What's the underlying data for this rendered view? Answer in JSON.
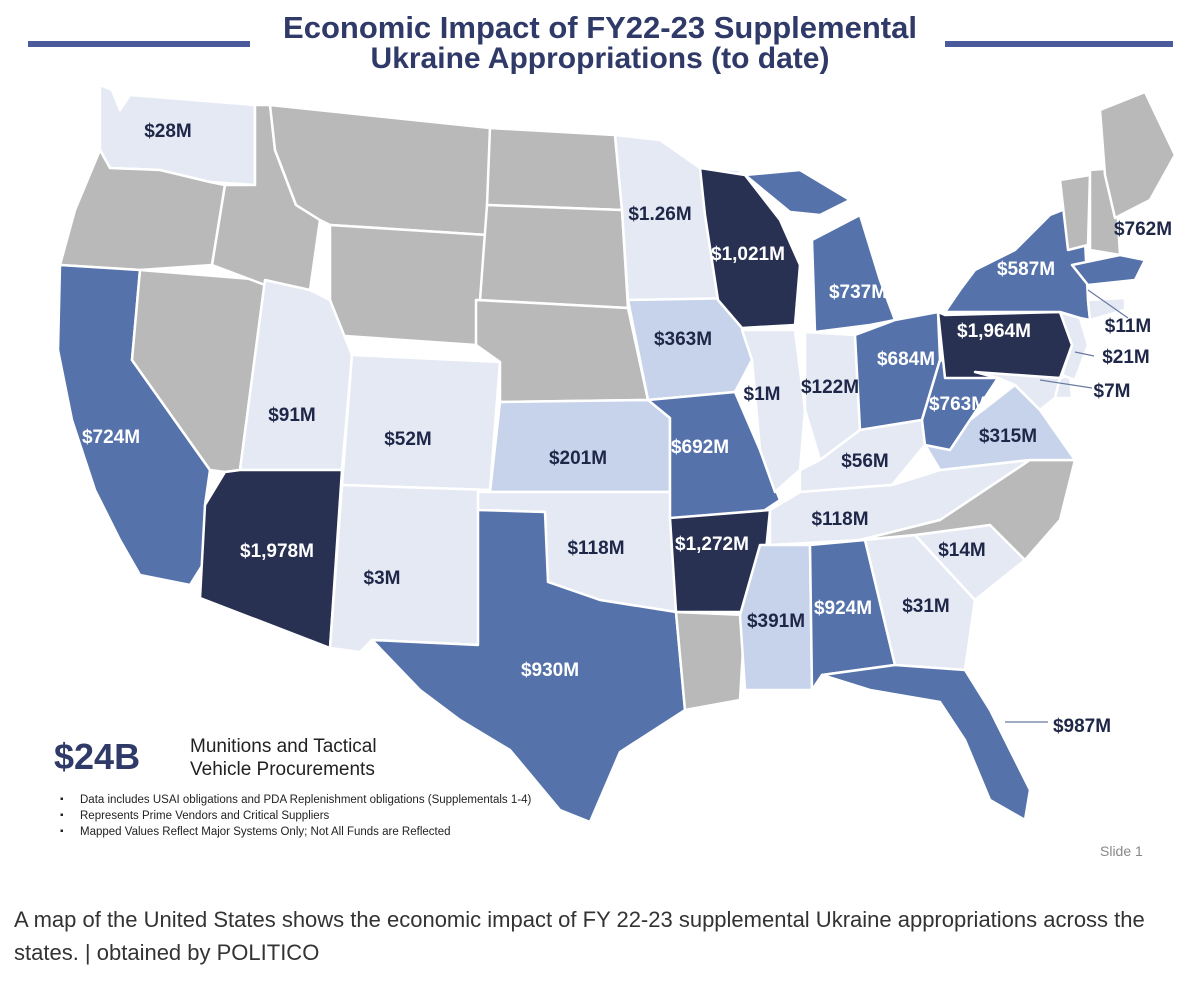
{
  "title": {
    "line1": "Economic Impact of FY22-23 Supplemental",
    "line2": "Ukraine Appropriations (to date)"
  },
  "map": {
    "states": [
      {
        "state": "WA",
        "value": "$28M"
      },
      {
        "state": "MN",
        "value": "$1.26M"
      },
      {
        "state": "WI",
        "value": "$1,021M"
      },
      {
        "state": "MA",
        "value": "$762M"
      },
      {
        "state": "NY",
        "value": "$587M"
      },
      {
        "state": "MI",
        "value": "$737M"
      },
      {
        "state": "IA",
        "value": "$363M"
      },
      {
        "state": "PA",
        "value": "$1,964M"
      },
      {
        "state": "CT",
        "value": "$11M"
      },
      {
        "state": "NJ",
        "value": "$21M"
      },
      {
        "state": "OH",
        "value": "$684M"
      },
      {
        "state": "IL",
        "value": "$1M"
      },
      {
        "state": "IN",
        "value": "$122M"
      },
      {
        "state": "DE",
        "value": "$7M"
      },
      {
        "state": "UT",
        "value": "$91M"
      },
      {
        "state": "WV",
        "value": "$763M"
      },
      {
        "state": "CA",
        "value": "$724M"
      },
      {
        "state": "CO",
        "value": "$52M"
      },
      {
        "state": "VA",
        "value": "$315M"
      },
      {
        "state": "KS",
        "value": "$201M"
      },
      {
        "state": "MO",
        "value": "$692M"
      },
      {
        "state": "KY",
        "value": "$56M"
      },
      {
        "state": "TN",
        "value": "$118M"
      },
      {
        "state": "AZ",
        "value": "$1,978M"
      },
      {
        "state": "OK",
        "value": "$118M"
      },
      {
        "state": "AR",
        "value": "$1,272M"
      },
      {
        "state": "SC",
        "value": "$14M"
      },
      {
        "state": "NM",
        "value": "$3M"
      },
      {
        "state": "MS",
        "value": "$391M"
      },
      {
        "state": "AL",
        "value": "$924M"
      },
      {
        "state": "GA",
        "value": "$31M"
      },
      {
        "state": "TX",
        "value": "$930M"
      },
      {
        "state": "FL",
        "value": "$987M"
      }
    ],
    "colors": {
      "none": "#b9b9b9",
      "tier1": "#e4e9f4",
      "tier2": "#c7d3ea",
      "tier3": "#5572ab",
      "tier4": "#283152"
    }
  },
  "legend": {
    "total": "$24B",
    "label_line1": "Munitions and Tactical",
    "label_line2": "Vehicle Procurements",
    "notes": [
      "Data includes USAI obligations and PDA Replenishment obligations (Supplementals 1-4)",
      "Represents Prime Vendors and Critical Suppliers",
      "Mapped Values Reflect Major Systems Only; Not All Funds are Reflected"
    ]
  },
  "slide_number": "Slide 1",
  "caption": "A map of the United States shows the economic impact of FY 22-23 supplemental Ukraine appropriations across the states. | obtained by POLITICO"
}
